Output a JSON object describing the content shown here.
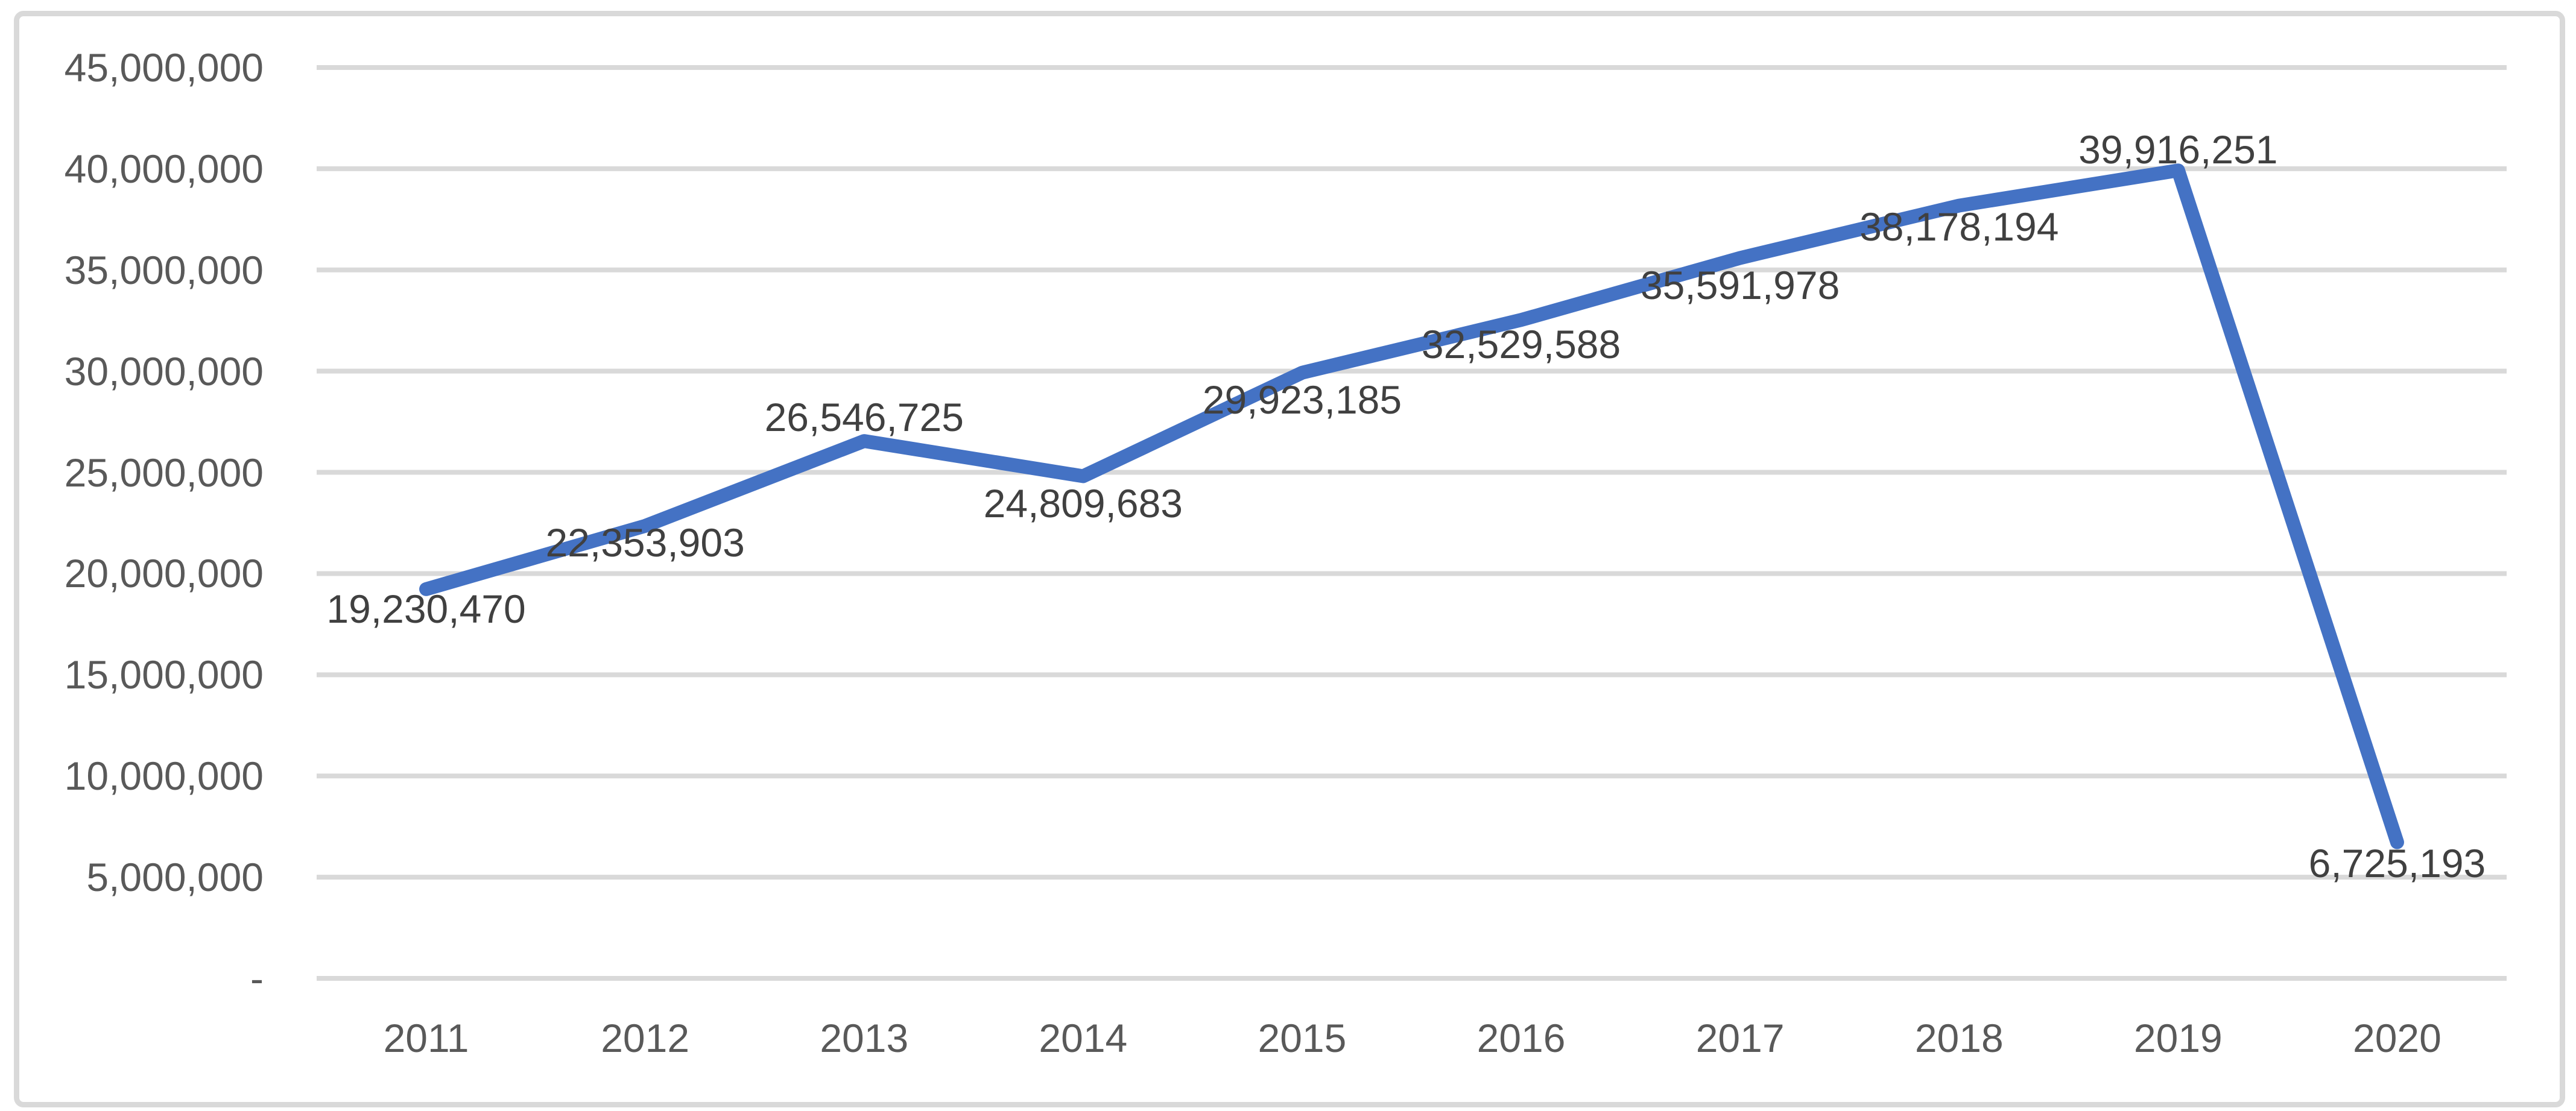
{
  "chart_data": {
    "type": "line",
    "title": "",
    "subtitle": "",
    "xlabel": "",
    "ylabel": "",
    "legend": "none",
    "grid": "horizontal",
    "data_labels_position": "center",
    "categories": [
      "2011",
      "2012",
      "2013",
      "2014",
      "2015",
      "2016",
      "2017",
      "2018",
      "2019",
      "2020"
    ],
    "series": [
      {
        "name": "values",
        "values": [
          19230470,
          22353903,
          26546725,
          24809683,
          29923185,
          32529588,
          35591978,
          38178194,
          39916251,
          6725193
        ],
        "value_labels": [
          "19,230,470",
          "22,353,903",
          "26,546,725",
          "24,809,683",
          "29,923,185",
          "32,529,588",
          "35,591,978",
          "38,178,194",
          "39,916,251",
          "6,725,193"
        ]
      }
    ],
    "ylim": [
      0,
      45000000
    ],
    "y_tick_step": 5000000,
    "y_ticks": [
      {
        "value": 45000000,
        "label": "45,000,000"
      },
      {
        "value": 40000000,
        "label": "40,000,000"
      },
      {
        "value": 35000000,
        "label": "35,000,000"
      },
      {
        "value": 30000000,
        "label": "30,000,000"
      },
      {
        "value": 25000000,
        "label": "25,000,000"
      },
      {
        "value": 20000000,
        "label": "20,000,000"
      },
      {
        "value": 15000000,
        "label": "15,000,000"
      },
      {
        "value": 10000000,
        "label": "10,000,000"
      },
      {
        "value": 5000000,
        "label": "5,000,000"
      },
      {
        "value": 0,
        "label": "-"
      }
    ],
    "colors": {
      "line": "#4472C4",
      "gridline": "#D9D9D9",
      "axis_tick_label": "#595959",
      "data_label": "#404040",
      "chart_border": "#D9D9D9",
      "background": "#FFFFFF"
    }
  }
}
